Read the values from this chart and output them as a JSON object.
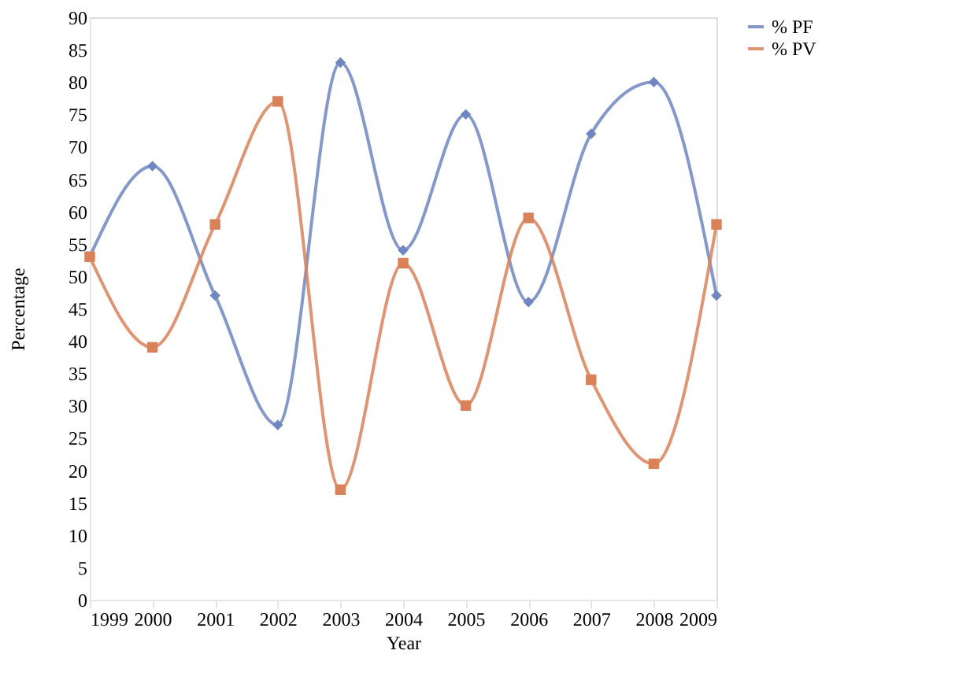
{
  "chart_data": {
    "type": "line",
    "xlabel": "Year",
    "ylabel": "Percentage",
    "categories": [
      "1999",
      "2000",
      "2001",
      "2002",
      "2003",
      "2004",
      "2005",
      "2006",
      "2007",
      "2008",
      "2009"
    ],
    "series": [
      {
        "name": "% PF",
        "color": "#6f86c0",
        "marker": "diamond",
        "values": [
          53,
          67,
          47,
          27,
          83,
          54,
          75,
          46,
          72,
          80,
          47
        ]
      },
      {
        "name": "% PV",
        "color": "#d9825a",
        "marker": "square",
        "values": [
          53,
          39,
          58,
          77,
          17,
          52,
          30,
          59,
          34,
          21,
          58
        ]
      }
    ],
    "ylim": [
      0,
      90
    ],
    "yticks": [
      0,
      5,
      10,
      15,
      20,
      25,
      30,
      35,
      40,
      45,
      50,
      55,
      60,
      65,
      70,
      75,
      80,
      85,
      90
    ],
    "grid": false,
    "legend": "right",
    "line_style": "solid"
  }
}
